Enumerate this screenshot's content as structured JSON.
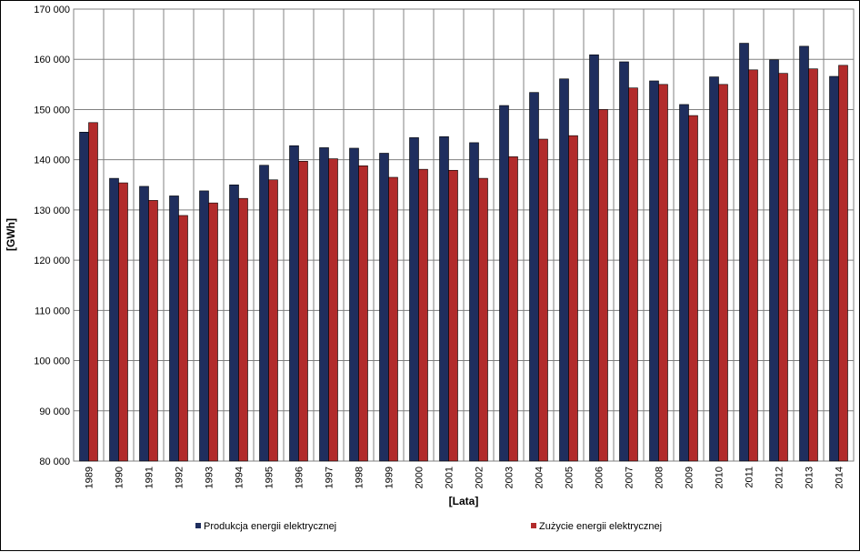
{
  "chart_data": {
    "type": "bar",
    "xlabel": "[Lata]",
    "ylabel": "[GWh]",
    "ylim": [
      80000,
      170000
    ],
    "yticks": [
      "80 000",
      "90 000",
      "100 000",
      "110 000",
      "120 000",
      "130 000",
      "140 000",
      "150 000",
      "160 000",
      "170 000"
    ],
    "grid": true,
    "legend_position": "bottom",
    "categories": [
      "1989",
      "1990",
      "1991",
      "1992",
      "1993",
      "1994",
      "1995",
      "1996",
      "1997",
      "1998",
      "1999",
      "2000",
      "2001",
      "2002",
      "2003",
      "2004",
      "2005",
      "2006",
      "2007",
      "2008",
      "2009",
      "2010",
      "2011",
      "2012",
      "2013",
      "2014"
    ],
    "series": [
      {
        "name": "Produkcja energii elektrycznej",
        "color": "#1f2e5e",
        "values": [
          145500,
          136300,
          134700,
          132800,
          133800,
          135000,
          138900,
          142800,
          142400,
          142300,
          141300,
          144400,
          144600,
          143400,
          150800,
          153400,
          156100,
          160900,
          159500,
          155700,
          151000,
          156500,
          163200,
          159900,
          162600,
          156600
        ]
      },
      {
        "name": "Zużycie energii elektrycznej",
        "color": "#b22b2b",
        "values": [
          147400,
          135400,
          131900,
          128900,
          131400,
          132300,
          136000,
          139700,
          140200,
          138800,
          136500,
          138100,
          137900,
          136300,
          140600,
          144100,
          144800,
          150000,
          154300,
          155000,
          148800,
          155000,
          157900,
          157200,
          158100,
          158800
        ]
      }
    ]
  }
}
